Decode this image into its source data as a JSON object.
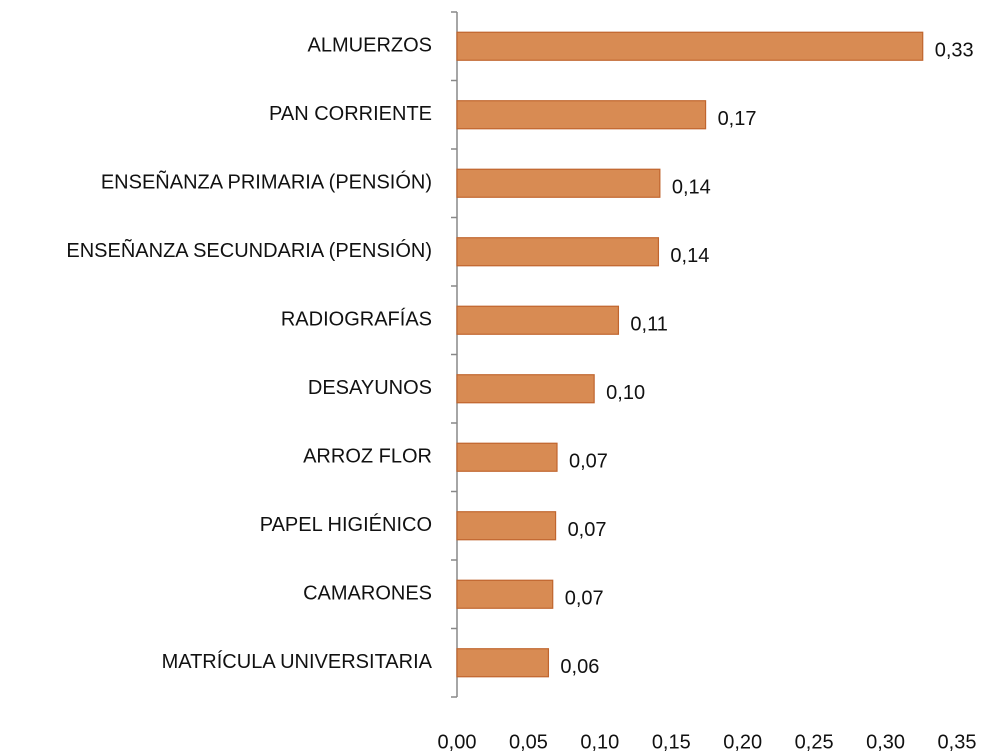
{
  "chart_data": {
    "type": "bar",
    "orientation": "horizontal",
    "categories": [
      "ALMUERZOS",
      "PAN CORRIENTE",
      "ENSEÑANZA PRIMARIA (PENSIÓN)",
      "ENSEÑANZA SECUNDARIA (PENSIÓN)",
      "RADIOGRAFÍAS",
      "DESAYUNOS",
      "ARROZ FLOR",
      "PAPEL HIGIÉNICO",
      "CAMARONES",
      "MATRÍCULA UNIVERSITARIA"
    ],
    "values": [
      0.326,
      0.174,
      0.142,
      0.141,
      0.113,
      0.096,
      0.07,
      0.069,
      0.067,
      0.064
    ],
    "value_labels": [
      "0,33",
      "0,17",
      "0,14",
      "0,14",
      "0,11",
      "0,10",
      "0,07",
      "0,07",
      "0,07",
      "0,06"
    ],
    "color": "#d88b53",
    "xlim": [
      0,
      0.35
    ],
    "xticks": [
      {
        "value": 0,
        "label": "0,00"
      },
      {
        "value": 0.05,
        "label": "0,05"
      },
      {
        "value": 0.1,
        "label": "0,10"
      },
      {
        "value": 0.15,
        "label": "0,15"
      },
      {
        "value": 0.2,
        "label": "0,20"
      },
      {
        "value": 0.25,
        "label": "0,25"
      },
      {
        "value": 0.3,
        "label": "0,30"
      },
      {
        "value": 0.35,
        "label": "0,35"
      }
    ],
    "grid": false
  }
}
